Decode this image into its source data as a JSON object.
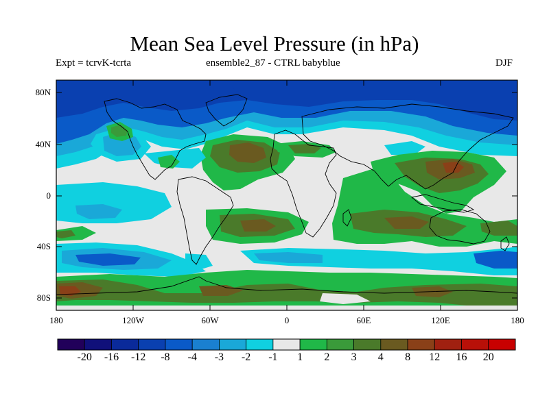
{
  "title": "Mean Sea Level Pressure (in hPa)",
  "subtitle_left": "Expt = tcrvK-tcrta",
  "subtitle_center": "ensemble2_87 - CTRL babyblue",
  "subtitle_right": "DJF",
  "lat_ticks": [
    "80N",
    "40N",
    "0",
    "40S",
    "80S"
  ],
  "lon_ticks": [
    "180",
    "120W",
    "60W",
    "0",
    "60E",
    "120E",
    "180"
  ],
  "colorbar": {
    "labels": [
      "-20",
      "-16",
      "-12",
      "-8",
      "-4",
      "-3",
      "-2",
      "-1",
      "1",
      "2",
      "3",
      "4",
      "8",
      "12",
      "16",
      "20"
    ],
    "colors": [
      "#21005a",
      "#10107a",
      "#0a2a9a",
      "#0a40b0",
      "#0a5ac8",
      "#1a80d0",
      "#1aa8d8",
      "#10d0e0",
      "#e8e8e8",
      "#20b848",
      "#3a9a3a",
      "#4a7a2a",
      "#6a5a20",
      "#8a4018",
      "#a02010",
      "#b81008",
      "#c80000"
    ]
  },
  "colors": {
    "neutral": "#e8e8e8",
    "cyan": "#10d0e0",
    "light_blue": "#1aa8d8",
    "mid_blue": "#0a5ac8",
    "deep_blue": "#0a40b0",
    "green": "#20b848",
    "olive": "#4a7a2a",
    "brown": "#6a5a20"
  }
}
